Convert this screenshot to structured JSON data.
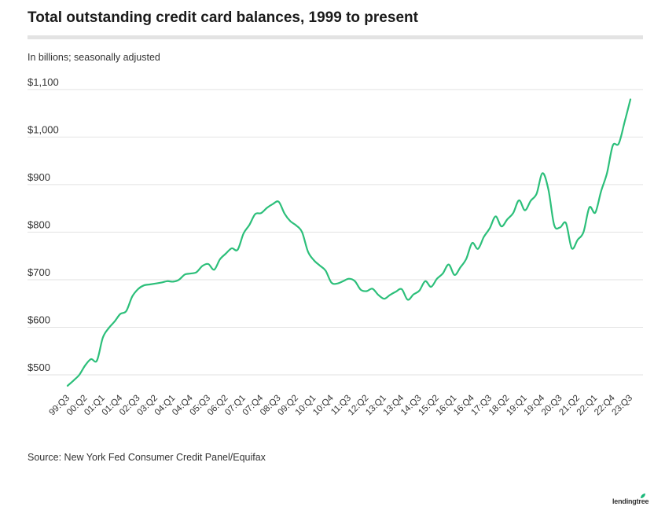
{
  "title": "Total outstanding credit card balances, 1999 to present",
  "subtitle": "In billions; seasonally adjusted",
  "source": "Source: New York Fed Consumer Credit Panel/Equifax",
  "logo": "lendingtree",
  "colors": {
    "line": "#2cbf7a",
    "grid": "#e2e2e2",
    "rule": "#e3e3e3"
  },
  "chart_data": {
    "type": "line",
    "title": "Total outstanding credit card balances, 1999 to present",
    "xlabel": "",
    "ylabel": "In billions; seasonally adjusted",
    "ylim": [
      460,
      1100
    ],
    "yticks": [
      500,
      600,
      700,
      800,
      900,
      1000,
      1100
    ],
    "ytick_labels": [
      "$500",
      "$600",
      "$700",
      "$800",
      "$900",
      "$1,000",
      "$1,100"
    ],
    "grid": true,
    "xtick_labels": [
      "99:Q3",
      "00:Q2",
      "01:Q1",
      "01:Q4",
      "02:Q3",
      "03:Q2",
      "04:Q1",
      "04:Q4",
      "05:Q3",
      "06:Q2",
      "07:Q1",
      "07:Q4",
      "08:Q3",
      "09:Q2",
      "10:Q1",
      "10:Q4",
      "11:Q3",
      "12:Q2",
      "13:Q1",
      "13:Q4",
      "14:Q3",
      "15:Q2",
      "16:Q1",
      "16:Q4",
      "17:Q3",
      "18:Q2",
      "19:Q1",
      "19:Q4",
      "20:Q3",
      "21:Q2",
      "22:Q1",
      "22:Q4",
      "23:Q3"
    ],
    "series": [
      {
        "name": "Credit card balances",
        "x": [
          "99:Q3",
          "99:Q4",
          "00:Q1",
          "00:Q2",
          "00:Q3",
          "00:Q4",
          "01:Q1",
          "01:Q2",
          "01:Q3",
          "01:Q4",
          "02:Q1",
          "02:Q2",
          "02:Q3",
          "02:Q4",
          "03:Q1",
          "03:Q2",
          "03:Q3",
          "03:Q4",
          "04:Q1",
          "04:Q2",
          "04:Q3",
          "04:Q4",
          "05:Q1",
          "05:Q2",
          "05:Q3",
          "05:Q4",
          "06:Q1",
          "06:Q2",
          "06:Q3",
          "06:Q4",
          "07:Q1",
          "07:Q2",
          "07:Q3",
          "07:Q4",
          "08:Q1",
          "08:Q2",
          "08:Q3",
          "08:Q4",
          "09:Q1",
          "09:Q2",
          "09:Q3",
          "09:Q4",
          "10:Q1",
          "10:Q2",
          "10:Q3",
          "10:Q4",
          "11:Q1",
          "11:Q2",
          "11:Q3",
          "11:Q4",
          "12:Q1",
          "12:Q2",
          "12:Q3",
          "12:Q4",
          "13:Q1",
          "13:Q2",
          "13:Q3",
          "13:Q4",
          "14:Q1",
          "14:Q2",
          "14:Q3",
          "14:Q4",
          "15:Q1",
          "15:Q2",
          "15:Q3",
          "15:Q4",
          "16:Q1",
          "16:Q2",
          "16:Q3",
          "16:Q4",
          "17:Q1",
          "17:Q2",
          "17:Q3",
          "17:Q4",
          "18:Q1",
          "18:Q2",
          "18:Q3",
          "18:Q4",
          "19:Q1",
          "19:Q2",
          "19:Q3",
          "19:Q4",
          "20:Q1",
          "20:Q2",
          "20:Q3",
          "20:Q4",
          "21:Q1",
          "21:Q2",
          "21:Q3",
          "21:Q4",
          "22:Q1",
          "22:Q2",
          "22:Q3",
          "22:Q4",
          "23:Q1",
          "23:Q2",
          "23:Q3"
        ],
        "values": [
          477,
          488,
          500,
          520,
          533,
          530,
          578,
          598,
          612,
          628,
          634,
          664,
          680,
          688,
          690,
          692,
          694,
          697,
          696,
          700,
          711,
          713,
          716,
          729,
          733,
          721,
          743,
          755,
          766,
          763,
          797,
          815,
          838,
          840,
          851,
          859,
          864,
          839,
          823,
          814,
          800,
          759,
          741,
          730,
          719,
          694,
          692,
          697,
          702,
          697,
          679,
          676,
          681,
          668,
          660,
          668,
          675,
          680,
          658,
          669,
          677,
          697,
          685,
          702,
          713,
          732,
          710,
          726,
          744,
          777,
          765,
          790,
          808,
          833,
          812,
          827,
          840,
          867,
          846,
          866,
          881,
          924,
          890,
          815,
          810,
          819,
          766,
          784,
          800,
          852,
          841,
          886,
          924,
          982,
          986,
          1031,
          1079
        ]
      }
    ]
  }
}
